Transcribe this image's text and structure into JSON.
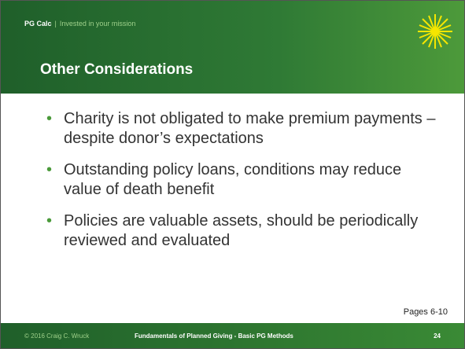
{
  "header": {
    "brand": "PG Calc",
    "separator": "|",
    "tagline": "Invested in your mission",
    "title": "Other Considerations"
  },
  "bullets": [
    "Charity is not obligated to make premium payments – despite donor’s expectations",
    "Outstanding policy loans, conditions may reduce value of death benefit",
    "Policies are valuable assets, should be periodically reviewed and evaluated"
  ],
  "note": "Pages 6-10",
  "footer": {
    "copyright": "© 2016 Craig C. Wruck",
    "course": "Fundamentals of Planned Giving - Basic PG Methods",
    "page": "24"
  }
}
